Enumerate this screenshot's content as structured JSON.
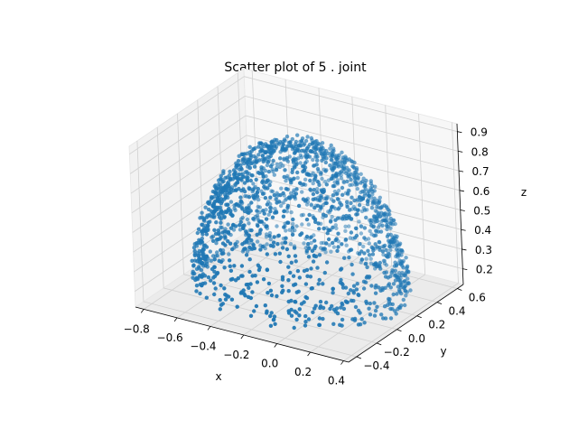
{
  "chart_data": {
    "type": "scatter",
    "projection": "3d",
    "title": "Scatter plot of 5 . joint",
    "xlabel": "x",
    "ylabel": "y",
    "zlabel": "z",
    "xlim": [
      -0.85,
      0.43
    ],
    "ylim": [
      -0.48,
      0.66
    ],
    "zlim": [
      0.12,
      0.94
    ],
    "xticks": [
      -0.8,
      -0.6,
      -0.4,
      -0.2,
      0.0,
      0.2,
      0.4
    ],
    "xtick_labels": [
      "−0.8",
      "−0.6",
      "−0.4",
      "−0.2",
      "0.0",
      "0.2",
      "0.4"
    ],
    "yticks": [
      -0.4,
      -0.2,
      0.0,
      0.2,
      0.4,
      0.6
    ],
    "ytick_labels": [
      "−0.4",
      "−0.2",
      "0.0",
      "0.2",
      "0.4",
      "0.6"
    ],
    "zticks": [
      0.2,
      0.3,
      0.4,
      0.5,
      0.6,
      0.7,
      0.8,
      0.9
    ],
    "ztick_labels": [
      "0.2",
      "0.3",
      "0.4",
      "0.5",
      "0.6",
      "0.7",
      "0.8",
      "0.9"
    ],
    "grid": true,
    "color": "#1f77b4",
    "point_cloud_description_note": "",
    "shape": {
      "kind": "hemispherical shell",
      "center": [
        -0.2,
        0.1,
        0.15
      ],
      "radius": 0.55,
      "approx_points": 1800
    }
  }
}
